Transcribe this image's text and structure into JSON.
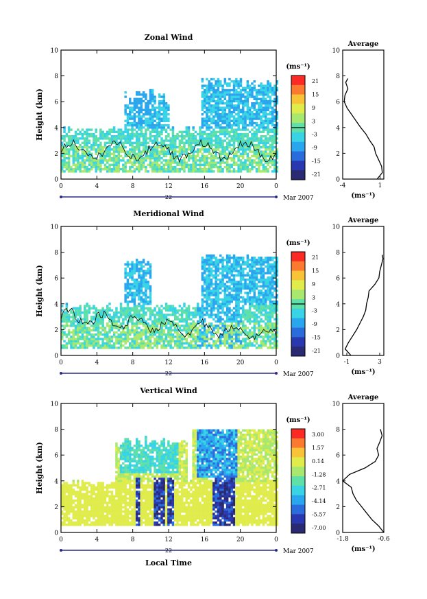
{
  "panels": [
    {
      "id": "zonal",
      "title": "Zonal Wind",
      "ylabel": "Height (km)",
      "unit_label": "(ms⁻¹)",
      "avg_title": "Average",
      "avg_unit": "(ms⁻¹)",
      "x_ticks": [
        "0",
        "4",
        "8",
        "12",
        "16",
        "20",
        "0"
      ],
      "y_ticks": [
        "0",
        "2",
        "4",
        "6",
        "8",
        "10"
      ],
      "day_label": "22",
      "month_label": "Mar 2007",
      "cbar_labels": [
        "21",
        "15",
        "9",
        "3",
        "-3",
        "-9",
        "-15",
        "-21"
      ],
      "avg_x_ticks": [
        "-4",
        "1"
      ],
      "avg_y_ticks": [
        "0",
        "2",
        "4",
        "6",
        "8",
        "10"
      ]
    },
    {
      "id": "meridional",
      "title": "Meridional Wind",
      "ylabel": "Height (km)",
      "unit_label": "(ms⁻¹)",
      "avg_title": "Average",
      "avg_unit": "(ms⁻¹)",
      "x_ticks": [
        "0",
        "4",
        "8",
        "12",
        "16",
        "20",
        "0"
      ],
      "y_ticks": [
        "0",
        "2",
        "4",
        "6",
        "8",
        "10"
      ],
      "day_label": "22",
      "month_label": "Mar 2007",
      "cbar_labels": [
        "21",
        "15",
        "9",
        "3",
        "-3",
        "-9",
        "-15",
        "-21"
      ],
      "avg_x_ticks": [
        "-1",
        "3"
      ],
      "avg_y_ticks": [
        "0",
        "2",
        "4",
        "6",
        "8",
        "10"
      ]
    },
    {
      "id": "vertical",
      "title": "Vertical Wind",
      "ylabel": "Height (km)",
      "unit_label": "(ms⁻¹)",
      "avg_title": "Average",
      "avg_unit": "(ms⁻¹)",
      "x_ticks": [
        "0",
        "4",
        "8",
        "12",
        "16",
        "20",
        "0"
      ],
      "y_ticks": [
        "0",
        "2",
        "4",
        "6",
        "8",
        "10"
      ],
      "day_label": "22",
      "month_label": "Mar 2007",
      "xlabel": "Local Time",
      "cbar_labels": [
        "3.00",
        "1.57",
        "0.14",
        "-1.28",
        "-2.71",
        "-4.14",
        "-5.57",
        "-7.00"
      ],
      "avg_x_ticks": [
        "-1.8",
        "-0.6"
      ],
      "avg_y_ticks": [
        "0",
        "2",
        "4",
        "6",
        "8",
        "10"
      ]
    }
  ],
  "colormap": [
    "#fb2a24",
    "#fb7a30",
    "#f9c338",
    "#e0ec4c",
    "#a8e86e",
    "#5ee0a8",
    "#38d4e6",
    "#2aa6ee",
    "#2a6cdc",
    "#2a38b0",
    "#2a2a72"
  ],
  "chart_data": [
    {
      "type": "heatmap",
      "title": "Zonal Wind",
      "xlabel": "",
      "ylabel": "Height (km)",
      "xlim": [
        0,
        24
      ],
      "ylim": [
        0,
        10
      ],
      "colorbar": {
        "label": "(ms⁻¹)",
        "range": [
          -21,
          21
        ],
        "ticks": [
          21,
          15,
          9,
          3,
          -3,
          -9,
          -15,
          -21
        ]
      },
      "zero_contour": true,
      "profile": {
        "title": "Average",
        "xlabel": "(ms⁻¹)",
        "xlim": [
          -4,
          1.5
        ],
        "points": [
          [
            0.6,
            0
          ],
          [
            1.3,
            0.5
          ],
          [
            1.2,
            1.0
          ],
          [
            0.8,
            1.5
          ],
          [
            0.4,
            2.0
          ],
          [
            0.2,
            2.5
          ],
          [
            -0.4,
            3.0
          ],
          [
            -0.9,
            3.5
          ],
          [
            -1.6,
            4.0
          ],
          [
            -2.2,
            4.5
          ],
          [
            -2.8,
            5.0
          ],
          [
            -3.4,
            5.5
          ],
          [
            -3.8,
            6.0
          ],
          [
            -3.7,
            6.5
          ],
          [
            -3.3,
            7.0
          ],
          [
            -3.6,
            7.5
          ],
          [
            -3.3,
            7.8
          ]
        ]
      }
    },
    {
      "type": "heatmap",
      "title": "Meridional Wind",
      "xlabel": "",
      "ylabel": "Height (km)",
      "xlim": [
        0,
        24
      ],
      "ylim": [
        0,
        10
      ],
      "colorbar": {
        "label": "(ms⁻¹)",
        "range": [
          -21,
          21
        ],
        "ticks": [
          21,
          15,
          9,
          3,
          -3,
          -9,
          -15,
          -21
        ]
      },
      "zero_contour": true,
      "profile": {
        "title": "Average",
        "xlabel": "(ms⁻¹)",
        "xlim": [
          -1.5,
          3.5
        ],
        "points": [
          [
            -0.5,
            0
          ],
          [
            -1.2,
            0.5
          ],
          [
            -0.8,
            1.0
          ],
          [
            -0.3,
            1.5
          ],
          [
            0.2,
            2.0
          ],
          [
            0.6,
            2.5
          ],
          [
            1.0,
            3.0
          ],
          [
            1.3,
            3.5
          ],
          [
            1.4,
            4.0
          ],
          [
            1.6,
            4.5
          ],
          [
            1.7,
            5.0
          ],
          [
            2.4,
            5.5
          ],
          [
            2.9,
            6.0
          ],
          [
            3.0,
            6.5
          ],
          [
            3.2,
            7.0
          ],
          [
            3.4,
            7.5
          ],
          [
            3.3,
            7.8
          ]
        ]
      }
    },
    {
      "type": "heatmap",
      "title": "Vertical Wind",
      "xlabel": "Local Time",
      "ylabel": "Height (km)",
      "xlim": [
        0,
        24
      ],
      "ylim": [
        0,
        10
      ],
      "colorbar": {
        "label": "(ms⁻¹)",
        "range": [
          -7.0,
          3.0
        ],
        "ticks": [
          3.0,
          1.57,
          0.14,
          -1.28,
          -2.71,
          -4.14,
          -5.57,
          -7.0
        ]
      },
      "zero_contour": false,
      "profile": {
        "title": "Average",
        "xlabel": "(ms⁻¹)",
        "xlim": [
          -1.8,
          -0.6
        ],
        "points": [
          [
            -0.6,
            0
          ],
          [
            -0.75,
            0.5
          ],
          [
            -0.95,
            1.0
          ],
          [
            -1.1,
            1.5
          ],
          [
            -1.25,
            2.0
          ],
          [
            -1.4,
            2.5
          ],
          [
            -1.5,
            3.0
          ],
          [
            -1.55,
            3.5
          ],
          [
            -1.8,
            4.0
          ],
          [
            -1.6,
            4.5
          ],
          [
            -1.15,
            5.0
          ],
          [
            -0.85,
            5.5
          ],
          [
            -0.75,
            6.0
          ],
          [
            -0.8,
            6.5
          ],
          [
            -0.72,
            7.0
          ],
          [
            -0.65,
            7.5
          ],
          [
            -0.7,
            8.0
          ]
        ]
      }
    }
  ]
}
